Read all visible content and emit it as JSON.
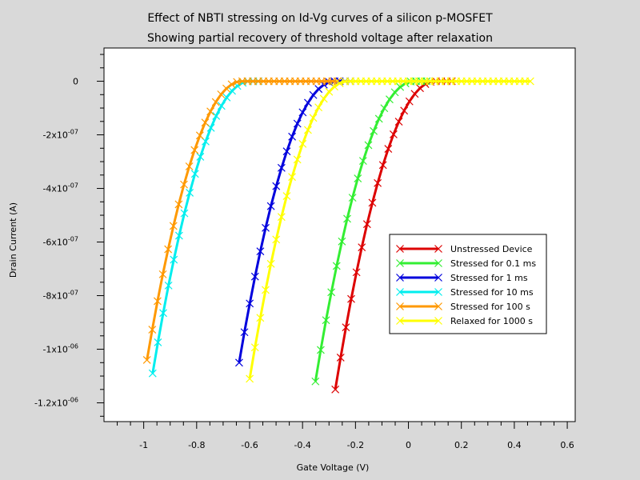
{
  "chart_data": {
    "type": "line",
    "title": "Effect of NBTI stressing on Id-Vg curves of a silicon p-MOSFET",
    "subtitle": "Showing partial recovery of threshold voltage after relaxation",
    "xlabel": "Gate Voltage (V)",
    "ylabel": "Drain Current (A)",
    "xlim": [
      -1.15,
      0.63
    ],
    "ylim": [
      -1.27e-06,
      1.24e-07
    ],
    "x_ticks": [
      -1,
      -0.8,
      -0.6,
      -0.4,
      -0.2,
      0,
      0.2,
      0.4,
      0.6
    ],
    "x_tick_labels": [
      "-1",
      "-0.8",
      "-0.6",
      "-0.4",
      "-0.2",
      "0",
      "0.2",
      "0.4",
      "0.6"
    ],
    "y_ticks": [
      {
        "value": 0,
        "mantissa": "0",
        "exp": ""
      },
      {
        "value": -2e-07,
        "mantissa": "-2x10",
        "exp": "-07"
      },
      {
        "value": -4e-07,
        "mantissa": "-4x10",
        "exp": "-07"
      },
      {
        "value": -6e-07,
        "mantissa": "-6x10",
        "exp": "-07"
      },
      {
        "value": -8e-07,
        "mantissa": "-8x10",
        "exp": "-07"
      },
      {
        "value": -1e-06,
        "mantissa": "-1x10",
        "exp": "-06"
      },
      {
        "value": -1.2e-06,
        "mantissa": "-1.2x10",
        "exp": "-06"
      }
    ],
    "grid": false,
    "legend_position": "right",
    "series": [
      {
        "name": "Unstressed Device",
        "color": "#dd0000",
        "vth": -0.3,
        "ymin": -1.15e-06,
        "xmax": 0.18
      },
      {
        "name": "Stressed for 0.1 ms",
        "color": "#33ee33",
        "vth": -0.38,
        "ymin": -1.12e-06,
        "xmax": 0.08
      },
      {
        "name": "Stressed for 1 ms",
        "color": "#0000dd",
        "vth": -0.68,
        "ymin": -1.05e-06,
        "xmax": -0.2
      },
      {
        "name": "Stressed for 10 ms",
        "color": "#00eeee",
        "vth": -1.0,
        "ymin": -1.09e-06,
        "xmax": -0.55
      },
      {
        "name": "Stressed for 100 s",
        "color": "#ff9900",
        "vth": -1.03,
        "ymin": -1.04e-06,
        "xmax": -0.25
      },
      {
        "name": "Relaxed for 1000 s",
        "color": "#ffff00",
        "vth": -0.63,
        "ymin": -1.11e-06,
        "xmax": 0.48
      }
    ]
  }
}
